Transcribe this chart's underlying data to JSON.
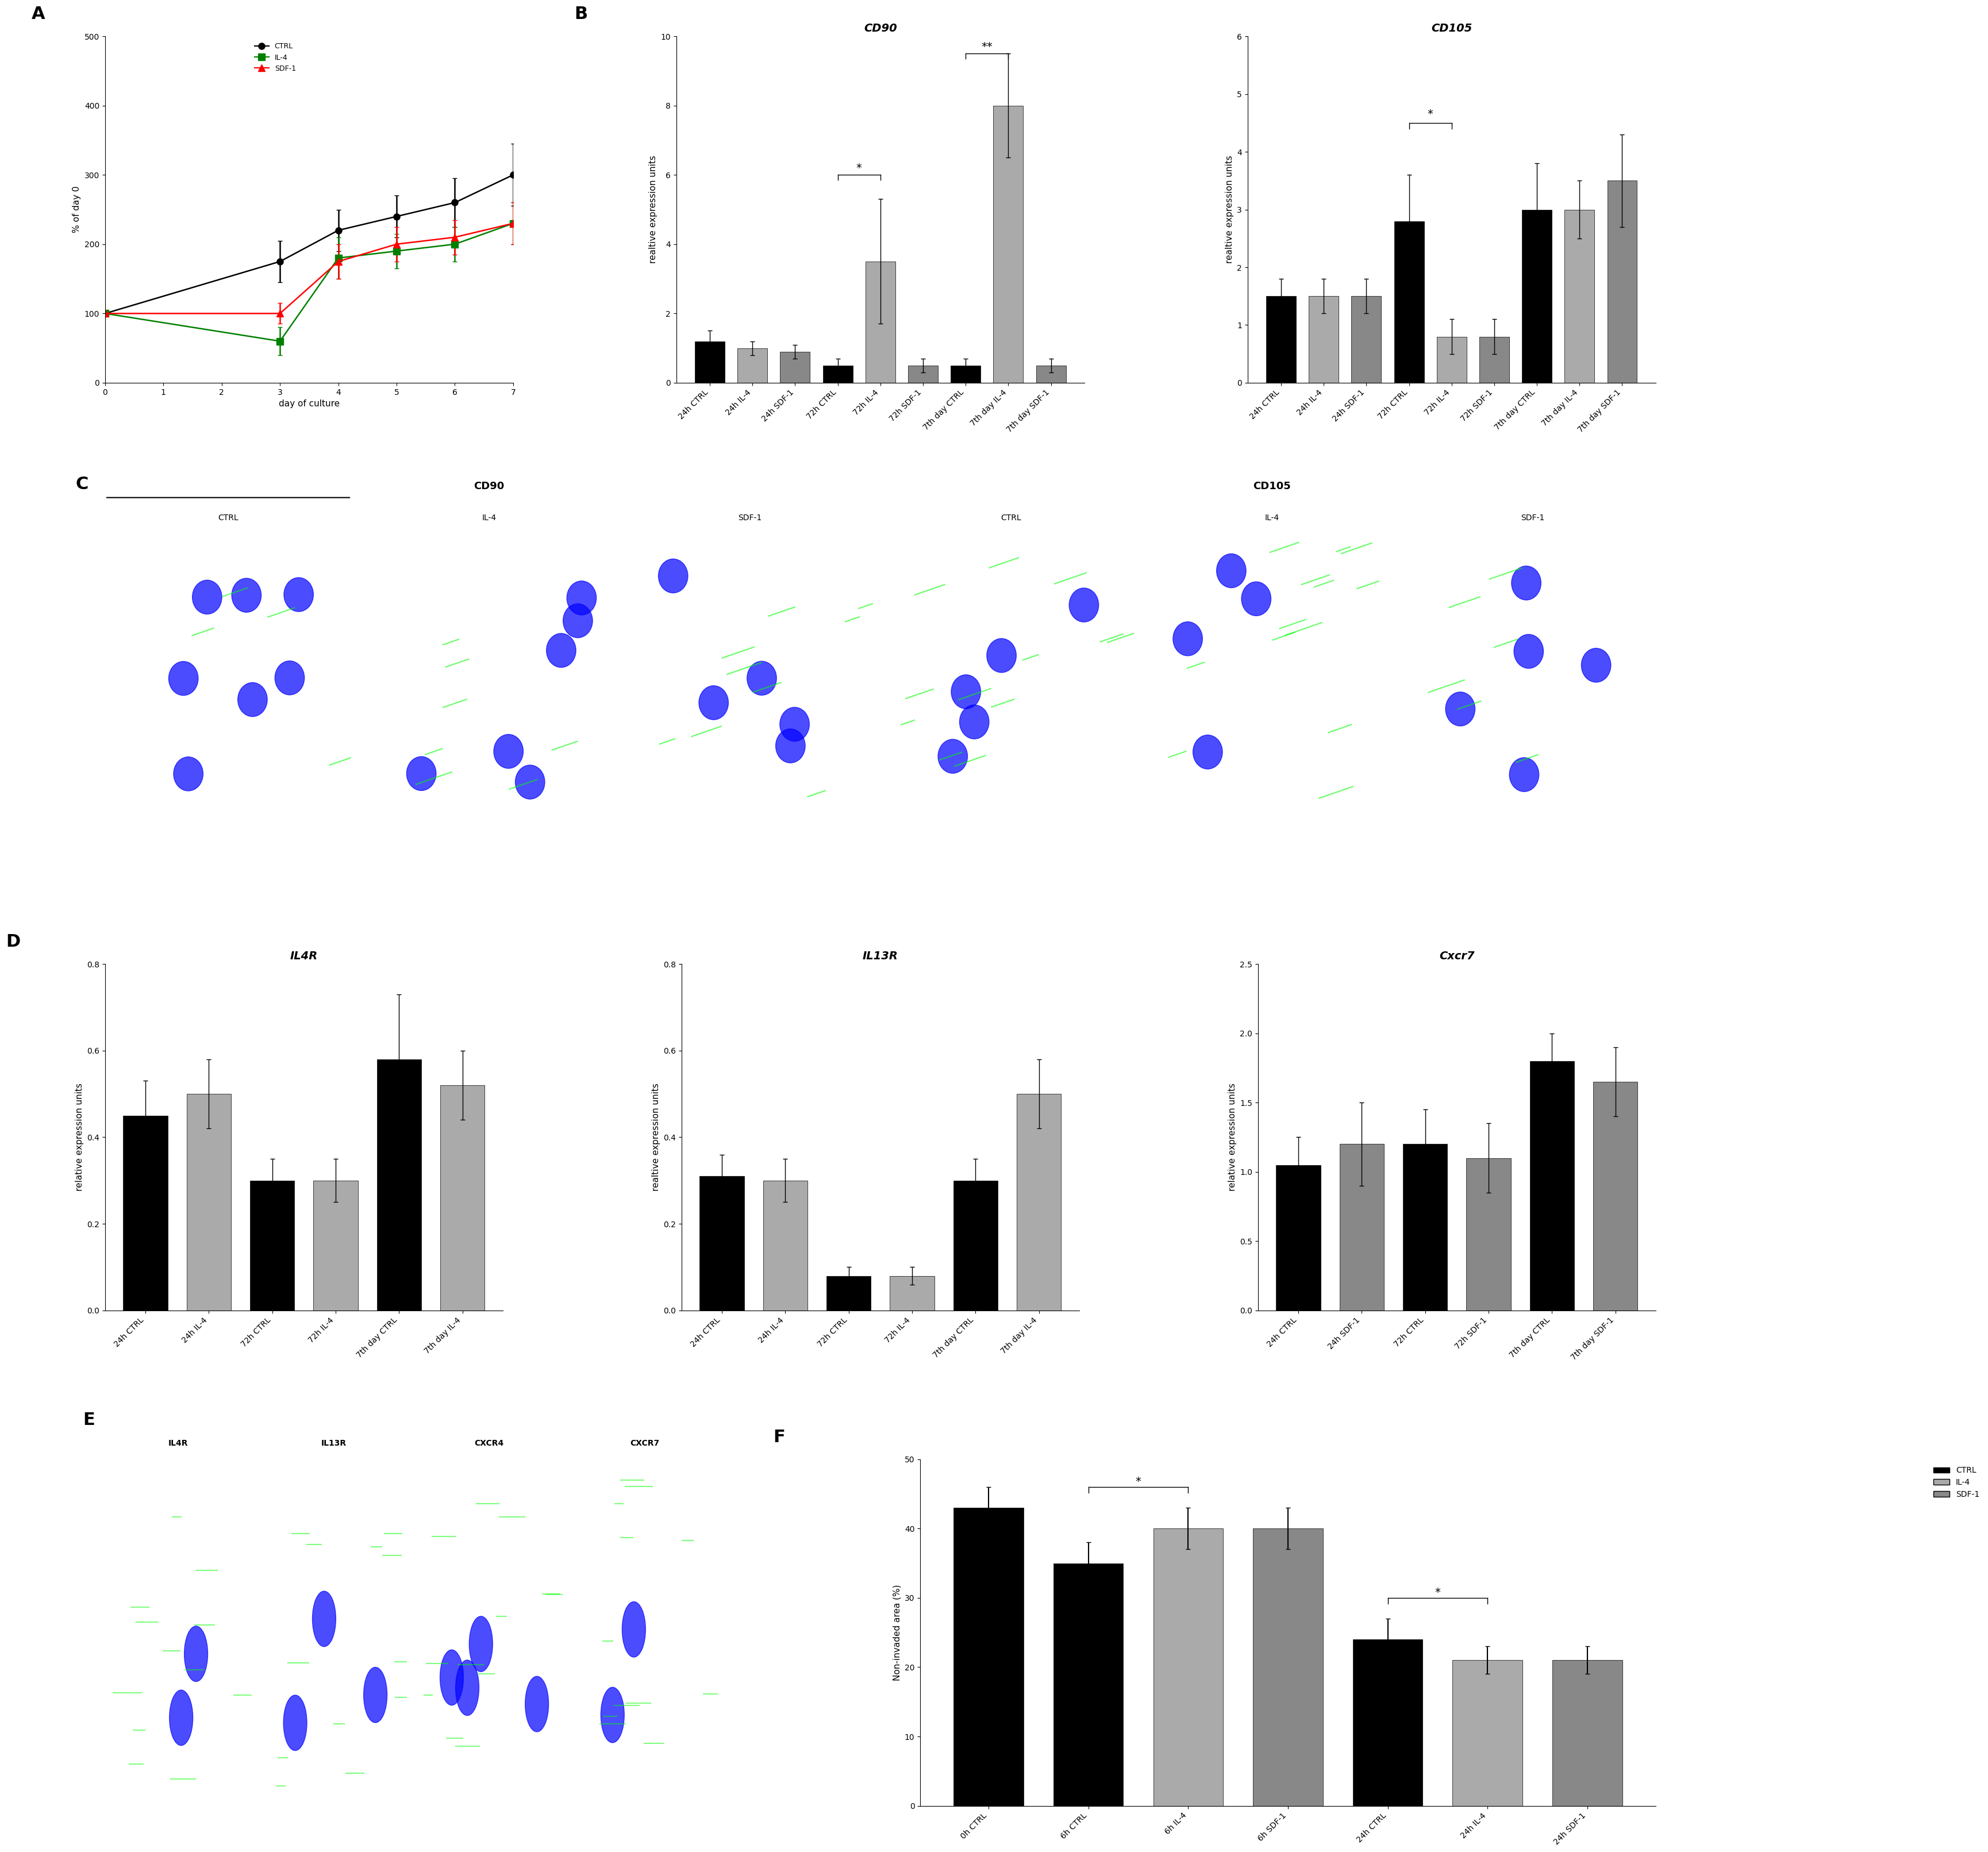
{
  "panel_A": {
    "xlabel": "day of culture",
    "ylabel": "% of day 0",
    "ylim": [
      0,
      500
    ],
    "yticks": [
      0,
      100,
      200,
      300,
      400,
      500
    ],
    "xlim": [
      0,
      7
    ],
    "xticks": [
      0,
      1,
      2,
      3,
      4,
      5,
      6,
      7
    ],
    "ctrl_x": [
      0,
      3,
      4,
      5,
      6,
      7
    ],
    "ctrl_y": [
      100,
      175,
      220,
      240,
      260,
      300
    ],
    "ctrl_err": [
      0,
      30,
      30,
      30,
      35,
      45
    ],
    "il4_x": [
      0,
      3,
      4,
      5,
      6,
      7
    ],
    "il4_y": [
      100,
      60,
      180,
      190,
      200,
      230
    ],
    "il4_err": [
      0,
      20,
      30,
      25,
      25,
      30
    ],
    "sdf1_x": [
      0,
      3,
      4,
      5,
      6,
      7
    ],
    "sdf1_y": [
      100,
      100,
      175,
      200,
      210,
      230
    ],
    "sdf1_err": [
      0,
      15,
      25,
      25,
      25,
      30
    ],
    "ctrl_color": "#000000",
    "il4_color": "#008000",
    "sdf1_color": "#FF0000"
  },
  "panel_B_CD90": {
    "title": "CD90",
    "ylabel": "realtive expression units",
    "ylim": [
      0,
      10.0
    ],
    "yticks": [
      0,
      2.0,
      4.0,
      6.0,
      8.0,
      10.0
    ],
    "categories": [
      "24h CTRL",
      "24h IL-4",
      "24h SDF-1",
      "72h CTRL",
      "72h IL-4",
      "72h SDF-1",
      "7th day CTRL",
      "7th day IL-4",
      "7th day SDF-1"
    ],
    "values": [
      1.2,
      1.0,
      0.9,
      0.5,
      3.5,
      0.5,
      0.5,
      8.0,
      0.5
    ],
    "errors": [
      0.3,
      0.2,
      0.2,
      0.2,
      1.8,
      0.2,
      0.2,
      1.5,
      0.2
    ],
    "colors": [
      "#000000",
      "#aaaaaa",
      "#888888",
      "#000000",
      "#aaaaaa",
      "#888888",
      "#000000",
      "#aaaaaa",
      "#888888"
    ],
    "sig1_x1": 3,
    "sig1_x2": 4,
    "sig1_y": 6.0,
    "sig1_text": "*",
    "sig2_x1": 6,
    "sig2_x2": 7,
    "sig2_y": 9.5,
    "sig2_text": "**"
  },
  "panel_B_CD105": {
    "title": "CD105",
    "ylabel": "realtive expression units",
    "ylim": [
      0,
      6.0
    ],
    "yticks": [
      0,
      1.0,
      2.0,
      3.0,
      4.0,
      5.0,
      6.0
    ],
    "categories": [
      "24h CTRL",
      "24h IL-4",
      "24h SDF-1",
      "72h CTRL",
      "72h IL-4",
      "72h SDF-1",
      "7th day CTRL",
      "7th day IL-4",
      "7th day SDF-1"
    ],
    "values": [
      1.5,
      1.5,
      1.5,
      2.8,
      0.8,
      0.8,
      3.0,
      3.0,
      3.5
    ],
    "errors": [
      0.3,
      0.3,
      0.3,
      0.8,
      0.3,
      0.3,
      0.8,
      0.5,
      0.8
    ],
    "colors": [
      "#000000",
      "#aaaaaa",
      "#888888",
      "#000000",
      "#aaaaaa",
      "#888888",
      "#000000",
      "#aaaaaa",
      "#888888"
    ],
    "sig1_x1": 3,
    "sig1_x2": 4,
    "sig1_y": 4.5,
    "sig1_text": "*"
  },
  "panel_D_IL4R": {
    "title": "IL4R",
    "ylabel": "relative expression units",
    "ylim": [
      0,
      0.8
    ],
    "yticks": [
      0,
      0.2,
      0.4,
      0.6,
      0.8
    ],
    "categories": [
      "24h CTRL",
      "24h IL-4",
      "72h CTRL",
      "72h IL-4",
      "7th day CTRL",
      "7th day IL-4"
    ],
    "values": [
      0.45,
      0.5,
      0.3,
      0.3,
      0.58,
      0.52
    ],
    "errors": [
      0.08,
      0.08,
      0.05,
      0.05,
      0.15,
      0.08
    ],
    "colors": [
      "#000000",
      "#aaaaaa",
      "#000000",
      "#aaaaaa",
      "#000000",
      "#aaaaaa"
    ]
  },
  "panel_D_IL13R": {
    "title": "IL13R",
    "ylabel": "realtive expression units",
    "ylim": [
      0,
      0.8
    ],
    "yticks": [
      0,
      0.2,
      0.4,
      0.6,
      0.8
    ],
    "categories": [
      "24h CTRL",
      "24h IL-4",
      "72h CTRL",
      "72h IL-4",
      "7th day CTRL",
      "7th day IL-4"
    ],
    "values": [
      0.31,
      0.3,
      0.08,
      0.08,
      0.3,
      0.5
    ],
    "errors": [
      0.05,
      0.05,
      0.02,
      0.02,
      0.05,
      0.08
    ],
    "colors": [
      "#000000",
      "#aaaaaa",
      "#000000",
      "#aaaaaa",
      "#000000",
      "#aaaaaa"
    ]
  },
  "panel_D_Cxcr7": {
    "title": "Cxcr7",
    "ylabel": "relative expression units",
    "ylim": [
      0,
      2.5
    ],
    "yticks": [
      0,
      0.5,
      1.0,
      1.5,
      2.0,
      2.5
    ],
    "categories": [
      "24h CTRL",
      "24h SDF-1",
      "72h CTRL",
      "72h SDF-1",
      "7th day CTRL",
      "7th day SDF-1"
    ],
    "values": [
      1.05,
      1.2,
      1.2,
      1.1,
      1.8,
      1.65
    ],
    "errors": [
      0.2,
      0.3,
      0.25,
      0.25,
      0.2,
      0.25
    ],
    "colors": [
      "#000000",
      "#888888",
      "#000000",
      "#888888",
      "#000000",
      "#888888"
    ]
  },
  "panel_F": {
    "ylabel": "Non-invaded area (%)",
    "ylim": [
      0,
      50
    ],
    "yticks": [
      0,
      10,
      20,
      30,
      40,
      50
    ],
    "categories": [
      "0h CTRL",
      "6h CTRL",
      "6h IL-4",
      "6h SDF-1",
      "24h CTRL",
      "24h IL-4",
      "24h SDF-1"
    ],
    "values": [
      43,
      35,
      40,
      40,
      24,
      21,
      21
    ],
    "errors": [
      3,
      3,
      3,
      3,
      3,
      2,
      2
    ],
    "colors": [
      "#000000",
      "#000000",
      "#aaaaaa",
      "#888888",
      "#000000",
      "#aaaaaa",
      "#888888"
    ],
    "sig1_x1": 1,
    "sig1_x2": 2,
    "sig1_y": 46,
    "sig1_text": "*",
    "sig2_x1": 4,
    "sig2_x2": 5,
    "sig2_y": 30,
    "sig2_text": "*",
    "legend_labels": [
      "CTRL",
      "IL-4",
      "SDF-1"
    ],
    "legend_colors": [
      "#000000",
      "#aaaaaa",
      "#888888"
    ]
  },
  "micro_C_labels": [
    "CTRL",
    "IL-4",
    "SDF-1",
    "CTRL",
    "IL-4",
    "SDF-1"
  ],
  "micro_C_groups": [
    "CD90",
    "CD105"
  ],
  "micro_E_labels": [
    "IL4R",
    "IL13R",
    "CXCR4",
    "CXCR7"
  ],
  "bg_color": "#ffffff",
  "label_fontsize": 22,
  "axis_fontsize": 11,
  "tick_fontsize": 10
}
